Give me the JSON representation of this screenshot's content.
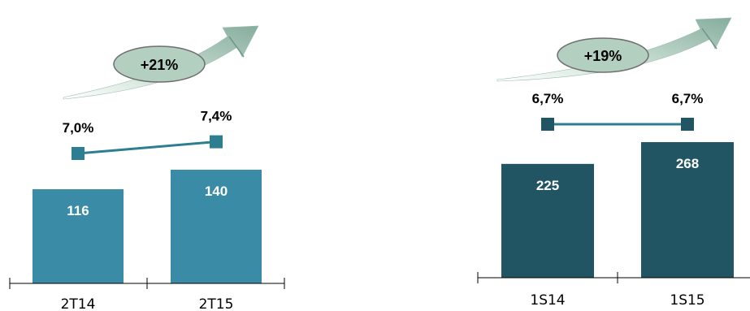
{
  "chart_data": [
    {
      "type": "bar",
      "categories": [
        "2T14",
        "2T15"
      ],
      "values": [
        116,
        140
      ],
      "line_values": [
        "7,0%",
        "7,4%"
      ],
      "line_numeric": [
        7.0,
        7.4
      ],
      "growth_label": "+21%",
      "colors": {
        "bar": "#3a8ba5",
        "line": "#2e7e92",
        "marker": "#2e7e92"
      }
    },
    {
      "type": "bar",
      "categories": [
        "1S14",
        "1S15"
      ],
      "values": [
        225,
        268
      ],
      "line_values": [
        "6,7%",
        "6,7%"
      ],
      "line_numeric": [
        6.7,
        6.7
      ],
      "growth_label": "+19%",
      "colors": {
        "bar": "#215563",
        "line": "#2e7e92",
        "marker": "#215563"
      }
    }
  ],
  "colors": {
    "ellipse_fill": "#b3cfc0",
    "ellipse_stroke": "#777777",
    "arrow_light": "#d4e6dc",
    "arrow_dark": "#7ea796"
  }
}
